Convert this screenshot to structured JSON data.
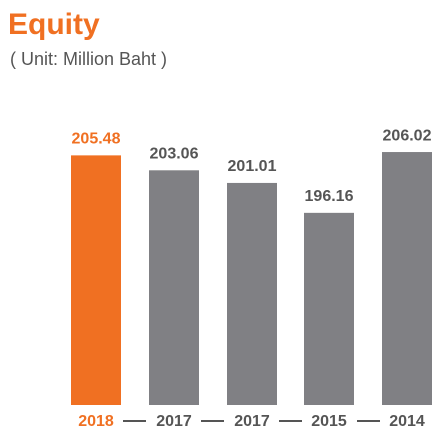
{
  "chart_data": {
    "type": "bar",
    "title": "Equity",
    "subtitle": "( Unit: Million Baht )",
    "categories": [
      "2018",
      "2017",
      "2017",
      "2015",
      "2014"
    ],
    "values": [
      205.48,
      203.06,
      201.01,
      196.16,
      206.02
    ],
    "colors": [
      "#f07022",
      "#808084",
      "#808084",
      "#808084",
      "#808084"
    ],
    "ylim": [
      165,
      207
    ]
  }
}
